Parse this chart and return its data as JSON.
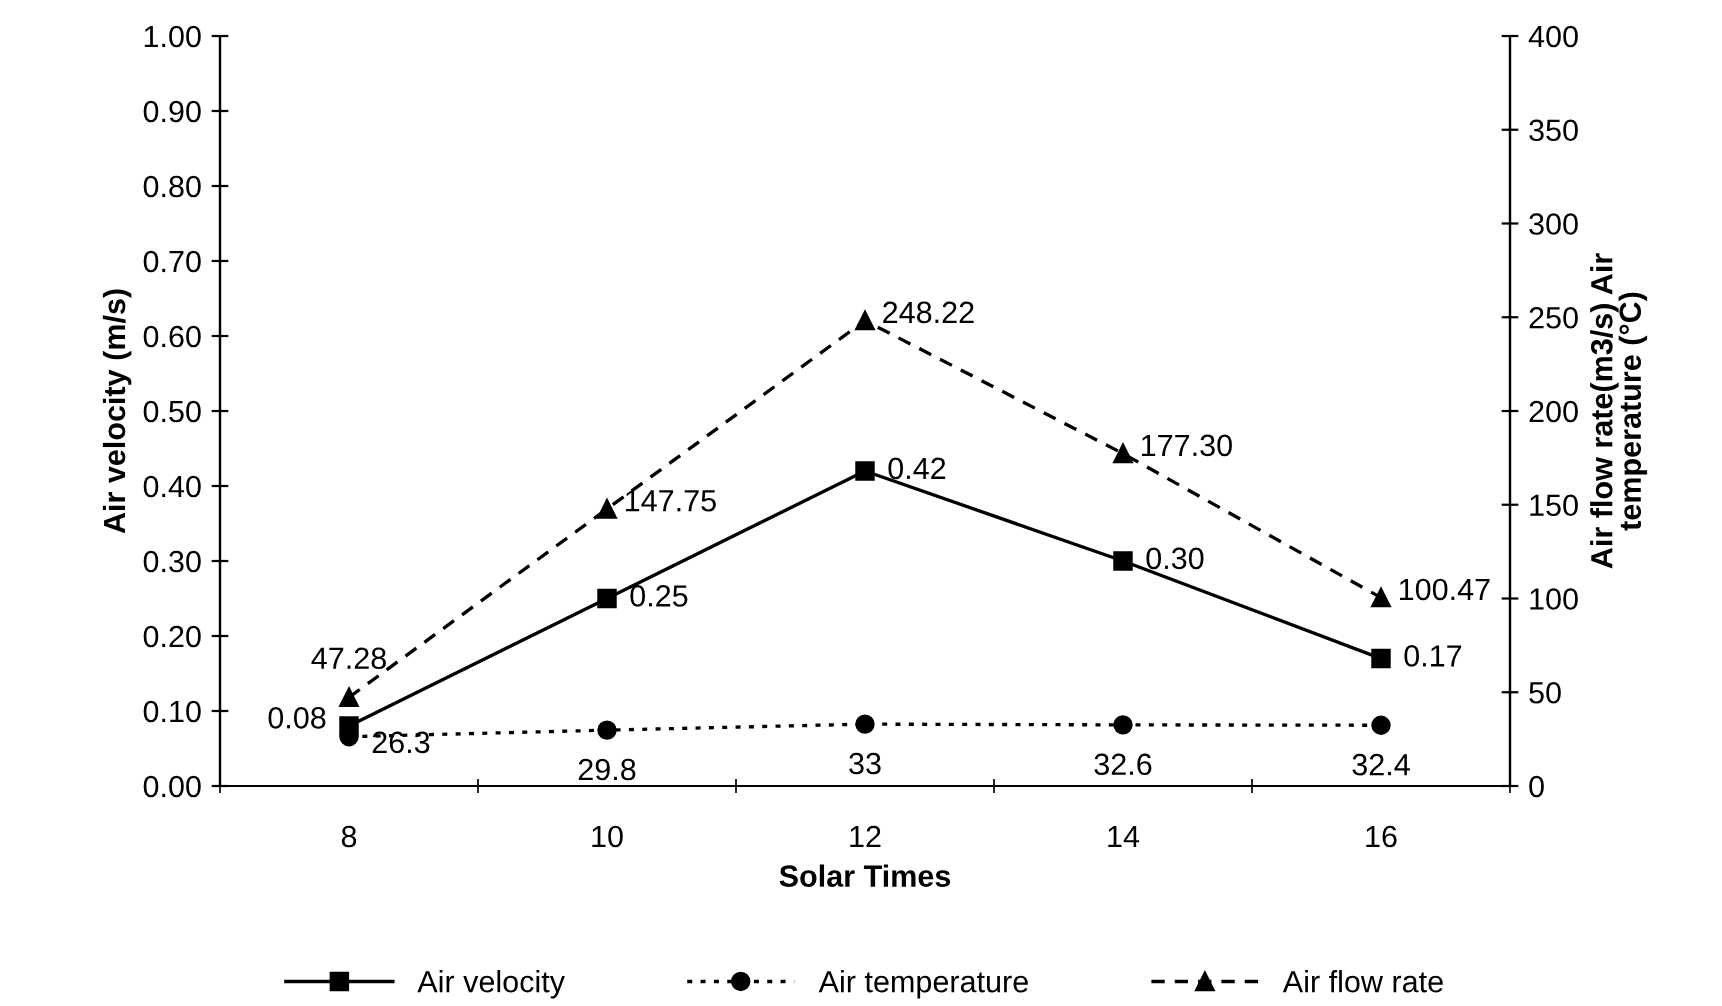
{
  "chart_data": {
    "type": "line",
    "xlabel": "Solar Times",
    "ylabel": "Air velocity (m/s)",
    "y2label": "Air flow rate(m3/s) Air\ntemperature (°C)",
    "categories": [
      "8",
      "10",
      "12",
      "14",
      "16"
    ],
    "ylim": [
      0,
      1
    ],
    "yticks": [
      {
        "value": 0,
        "label": "0.00"
      },
      {
        "value": 0.1,
        "label": "0.10"
      },
      {
        "value": 0.2,
        "label": "0.20"
      },
      {
        "value": 0.3,
        "label": "0.30"
      },
      {
        "value": 0.4,
        "label": "0.40"
      },
      {
        "value": 0.5,
        "label": "0.50"
      },
      {
        "value": 0.6,
        "label": "0.60"
      },
      {
        "value": 0.7,
        "label": "0.70"
      },
      {
        "value": 0.8,
        "label": "0.80"
      },
      {
        "value": 0.9,
        "label": "0.90"
      },
      {
        "value": 1,
        "label": "1.00"
      }
    ],
    "y2lim": [
      0,
      400
    ],
    "y2ticks": [
      0,
      50,
      100,
      150,
      200,
      250,
      300,
      350,
      400
    ],
    "series": [
      {
        "name": "Air velocity",
        "color": "#000000",
        "marker": "square",
        "line_style": "solid",
        "values": [
          0.08,
          0.25,
          0.42,
          0.3,
          0.17
        ],
        "value_labels": [
          "0.08",
          "0.25",
          "0.42",
          "0.30",
          "0.17"
        ]
      },
      {
        "name": "Air temperature",
        "color": "#000000",
        "marker": "circle",
        "line_style": "dotted",
        "axis": "y2",
        "values": [
          26.3,
          29.8,
          33,
          32.6,
          32.4
        ],
        "value_labels": [
          "26.3",
          "29.8",
          "33",
          "32.6",
          "32.4"
        ]
      },
      {
        "name": "Air flow rate",
        "color": "#000000",
        "marker": "triangle",
        "line_style": "dashed",
        "axis": "y2",
        "values": [
          47.28,
          147.75,
          248.22,
          177.3,
          100.47
        ],
        "value_labels": [
          "47.28",
          "147.75",
          "248.22",
          "177.30",
          "100.47"
        ]
      }
    ],
    "grid": false,
    "legend": "bottom"
  }
}
